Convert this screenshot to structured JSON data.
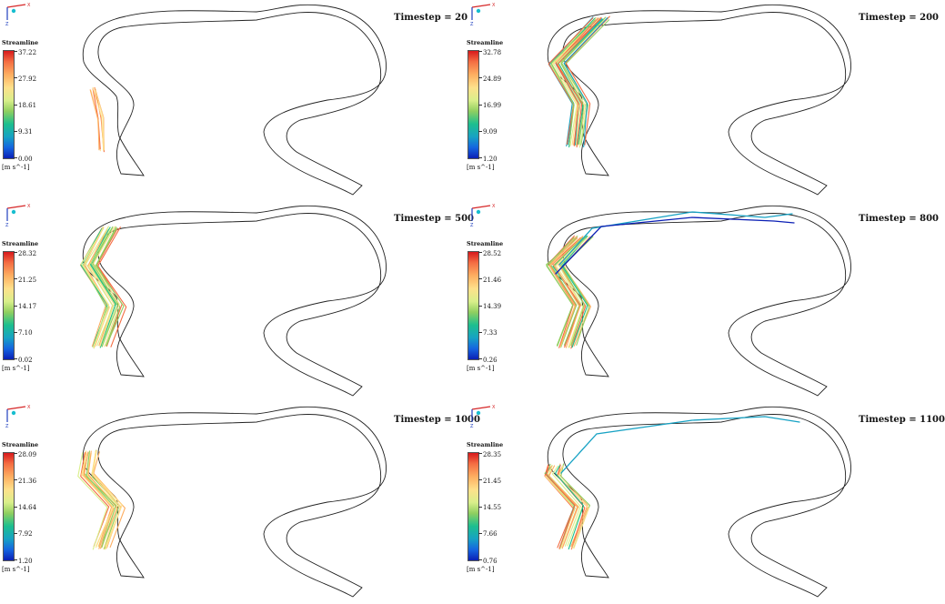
{
  "colorbar_title": "Streamline",
  "colorbar_unit": "[m s^-1]",
  "panels": [
    {
      "title": "Timestep = 20",
      "ticks": [
        "37.22",
        "27.92",
        "18.61",
        "9.31",
        "0.00"
      ]
    },
    {
      "title": "Timestep = 200",
      "ticks": [
        "32.78",
        "24.89",
        "16.99",
        "9.09",
        "1.20"
      ]
    },
    {
      "title": "Timestep = 500",
      "ticks": [
        "28.32",
        "21.25",
        "14.17",
        "7.10",
        "0.02"
      ]
    },
    {
      "title": "Timestep = 800",
      "ticks": [
        "28.52",
        "21.46",
        "14.39",
        "7.33",
        "0.26"
      ]
    },
    {
      "title": "Timestep = 1000",
      "ticks": [
        "28.09",
        "21.36",
        "14.64",
        "7.92",
        "1.20"
      ]
    },
    {
      "title": "Timestep = 1100",
      "ticks": [
        "28.35",
        "21.45",
        "14.55",
        "7.66",
        "0.76"
      ]
    }
  ],
  "axis_triad": {
    "x_label": "X",
    "z_label": "Z",
    "x_color": "#d62728",
    "z_color": "#1f3fbf",
    "center_color": "#17becf"
  },
  "colormap": [
    "#0b1fb5",
    "#1565e0",
    "#17a2c4",
    "#1dbf8e",
    "#91cf60",
    "#d9ef8b",
    "#fee08b",
    "#fdae61",
    "#f46d43",
    "#d7191c"
  ]
}
